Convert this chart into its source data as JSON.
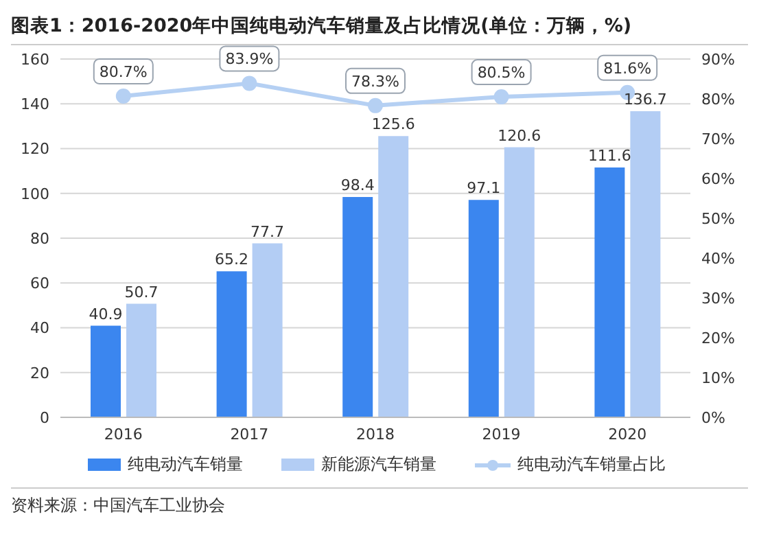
{
  "chart_data": {
    "type": "bar",
    "title": "图表1：2016-2020年中国纯电动汽车销量及占比情况(单位：万辆，%)",
    "categories": [
      "2016",
      "2017",
      "2018",
      "2019",
      "2020"
    ],
    "series": [
      {
        "name": "纯电动汽车销量",
        "color": "#3b86ef",
        "values": [
          40.9,
          65.2,
          98.4,
          97.1,
          111.6
        ],
        "value_labels": [
          "40.9",
          "65.2",
          "98.4",
          "97.1",
          "111.6"
        ]
      },
      {
        "name": "新能源汽车销量",
        "color": "#b3cdf4",
        "values": [
          50.7,
          77.7,
          125.6,
          120.6,
          136.7
        ],
        "value_labels": [
          "50.7",
          "77.7",
          "125.6",
          "120.6",
          "136.7"
        ]
      },
      {
        "name": "纯电动汽车销量占比",
        "type": "line",
        "axis": "y2",
        "color": "#b5d0f3",
        "values": [
          80.7,
          83.9,
          78.3,
          80.5,
          81.6
        ],
        "value_labels": [
          "80.7%",
          "83.9%",
          "78.3%",
          "80.5%",
          "81.6%"
        ]
      }
    ],
    "ylim": [
      0,
      160
    ],
    "yticks": [
      0,
      20,
      40,
      60,
      80,
      100,
      120,
      140,
      160
    ],
    "y2lim": [
      0,
      90
    ],
    "y2ticks": [
      {
        "value": 0,
        "label": "0%"
      },
      {
        "value": 10,
        "label": "10%"
      },
      {
        "value": 20,
        "label": "20%"
      },
      {
        "value": 30,
        "label": "30%"
      },
      {
        "value": 40,
        "label": "40%"
      },
      {
        "value": 50,
        "label": "50%"
      },
      {
        "value": 60,
        "label": "60%"
      },
      {
        "value": 70,
        "label": "70%"
      },
      {
        "value": 80,
        "label": "80%"
      },
      {
        "value": 90,
        "label": "90%"
      }
    ],
    "grid": "y",
    "legend": "bottom",
    "marker": "circle",
    "line_style": "solid",
    "annotations": [
      "资料来源：中国汽车工业协会"
    ]
  }
}
